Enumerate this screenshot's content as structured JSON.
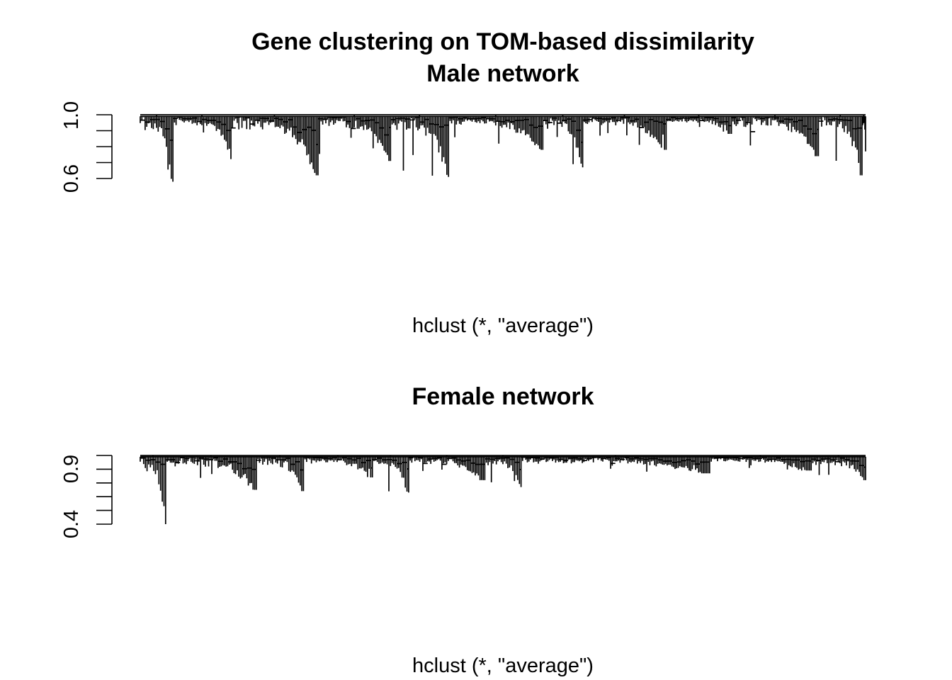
{
  "chart_data": [
    {
      "type": "dendrogram",
      "title": "Gene clustering on TOM-based dissimilarity",
      "subtitle": "Male network",
      "xlabel": "hclust (*, \"average\")",
      "ylabel": "",
      "ylim": [
        0.6,
        1.0
      ],
      "y_ticks": [
        0.6,
        0.7,
        0.8,
        0.9,
        1.0
      ],
      "y_tick_labels": [
        "0.6",
        "1.0"
      ],
      "top_height": 1.0,
      "clusters": [
        {
          "from": 0.0,
          "to": 0.045,
          "min_height": 0.58
        },
        {
          "from": 0.045,
          "to": 0.125,
          "min_height": 0.78
        },
        {
          "from": 0.125,
          "to": 0.245,
          "min_height": 0.62
        },
        {
          "from": 0.245,
          "to": 0.345,
          "min_height": 0.71
        },
        {
          "from": 0.345,
          "to": 0.425,
          "min_height": 0.61
        },
        {
          "from": 0.425,
          "to": 0.555,
          "min_height": 0.78
        },
        {
          "from": 0.555,
          "to": 0.61,
          "min_height": 0.67
        },
        {
          "from": 0.61,
          "to": 0.725,
          "min_height": 0.78
        },
        {
          "from": 0.725,
          "to": 0.815,
          "min_height": 0.88
        },
        {
          "from": 0.815,
          "to": 0.935,
          "min_height": 0.74
        },
        {
          "from": 0.935,
          "to": 0.995,
          "min_height": 0.62
        },
        {
          "from": 0.995,
          "to": 1.0,
          "min_height": 0.77
        }
      ]
    },
    {
      "type": "dendrogram",
      "title": "Female network",
      "xlabel": "hclust (*, \"average\")",
      "ylabel": "",
      "ylim": [
        0.4,
        0.9
      ],
      "y_ticks": [
        0.4,
        0.5,
        0.6,
        0.7,
        0.8,
        0.9
      ],
      "y_tick_labels": [
        "0.4",
        "0.9"
      ],
      "top_height": 0.9,
      "clusters": [
        {
          "from": 0.0,
          "to": 0.035,
          "min_height": 0.4
        },
        {
          "from": 0.035,
          "to": 0.16,
          "min_height": 0.65
        },
        {
          "from": 0.16,
          "to": 0.225,
          "min_height": 0.64
        },
        {
          "from": 0.225,
          "to": 0.32,
          "min_height": 0.74
        },
        {
          "from": 0.32,
          "to": 0.37,
          "min_height": 0.63
        },
        {
          "from": 0.37,
          "to": 0.475,
          "min_height": 0.72
        },
        {
          "from": 0.475,
          "to": 0.525,
          "min_height": 0.67
        },
        {
          "from": 0.525,
          "to": 0.785,
          "min_height": 0.77
        },
        {
          "from": 0.785,
          "to": 0.925,
          "min_height": 0.79
        },
        {
          "from": 0.925,
          "to": 1.0,
          "min_height": 0.72
        }
      ]
    }
  ]
}
